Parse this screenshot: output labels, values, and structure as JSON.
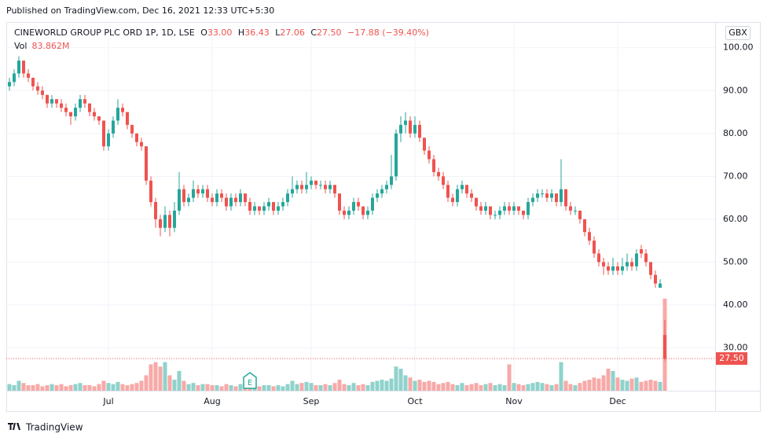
{
  "published": "Published on TradingView.com, Dec 16, 2021 12:33 UTC+5:30",
  "footer": "TradingView",
  "chart_data": {
    "type": "candlestick",
    "header": {
      "symbol": "CINEWORLD GROUP PLC ORD 1P, 1D, LSE",
      "open_key": "O",
      "high_key": "H",
      "low_key": "L",
      "close_key": "C",
      "change": "−17.88 (−39.40%)",
      "volume_key": "Vol"
    },
    "ohlc_labels": {
      "open": "33.00",
      "high": "36.43",
      "low": "27.06",
      "close": "27.50"
    },
    "volume_label": "83.862M",
    "currency": "GBX",
    "event_marker": "E",
    "up_color": "#26a69a",
    "down_color": "#ef5350",
    "up_volume_color": "#8fd2cb",
    "down_volume_color": "#f7a9a7",
    "grid": true,
    "ylim": [
      20,
      106
    ],
    "yticks": [
      {
        "value": 30,
        "label": "30.00"
      },
      {
        "value": 40,
        "label": "40.00"
      },
      {
        "value": 50,
        "label": "50.00"
      },
      {
        "value": 60,
        "label": "60.00"
      },
      {
        "value": 70,
        "label": "70.00"
      },
      {
        "value": 80,
        "label": "80.00"
      },
      {
        "value": 90,
        "label": "90.00"
      },
      {
        "value": 100,
        "label": "100.00"
      }
    ],
    "volume_ylim": [
      0,
      336
    ],
    "categories": [
      null,
      null,
      null,
      null,
      null,
      null,
      null,
      null,
      null,
      null,
      null,
      null,
      null,
      null,
      null,
      null,
      null,
      null,
      null,
      null,
      null,
      "Jul",
      null,
      null,
      null,
      null,
      null,
      null,
      null,
      null,
      null,
      null,
      null,
      null,
      null,
      null,
      null,
      null,
      null,
      null,
      null,
      null,
      null,
      "Aug",
      null,
      null,
      null,
      null,
      null,
      null,
      null,
      null,
      null,
      null,
      null,
      null,
      null,
      null,
      null,
      null,
      null,
      null,
      null,
      null,
      "Sep",
      null,
      null,
      null,
      null,
      null,
      null,
      null,
      null,
      null,
      null,
      null,
      null,
      null,
      null,
      null,
      null,
      null,
      null,
      null,
      null,
      null,
      "Oct",
      null,
      null,
      null,
      null,
      null,
      null,
      null,
      null,
      null,
      null,
      null,
      null,
      null,
      null,
      null,
      null,
      null,
      null,
      null,
      null,
      "Nov",
      null,
      null,
      null,
      null,
      null,
      null,
      null,
      null,
      null,
      null,
      null,
      null,
      null,
      null,
      null,
      null,
      null,
      null,
      null,
      null,
      null,
      "Dec",
      null,
      null,
      null,
      null,
      null,
      null,
      null,
      null,
      null,
      null
    ],
    "candles": [
      [
        91,
        93,
        90,
        92
      ],
      [
        92,
        95,
        91,
        94
      ],
      [
        94,
        98,
        93,
        97
      ],
      [
        97,
        97,
        93,
        94
      ],
      [
        94,
        95,
        92,
        93
      ],
      [
        93,
        93,
        90,
        91
      ],
      [
        91,
        92,
        89,
        90
      ],
      [
        90,
        91,
        88,
        89
      ],
      [
        89,
        89,
        86,
        87
      ],
      [
        87,
        89,
        86,
        88
      ],
      [
        88,
        88,
        86,
        87
      ],
      [
        87,
        88,
        85,
        86
      ],
      [
        86,
        87,
        84,
        85
      ],
      [
        85,
        85,
        82,
        84
      ],
      [
        84,
        87,
        83,
        86
      ],
      [
        86,
        89,
        85,
        88
      ],
      [
        88,
        89,
        86,
        87
      ],
      [
        87,
        87,
        84,
        85
      ],
      [
        85,
        86,
        83,
        84
      ],
      [
        84,
        84,
        82,
        83
      ],
      [
        83,
        83,
        76,
        77
      ],
      [
        77,
        81,
        76,
        80
      ],
      [
        80,
        84,
        79,
        83
      ],
      [
        83,
        88,
        82,
        86
      ],
      [
        86,
        87,
        84,
        85
      ],
      [
        85,
        85,
        81,
        82
      ],
      [
        82,
        82,
        79,
        80
      ],
      [
        80,
        80,
        77,
        78
      ],
      [
        78,
        79,
        76,
        77
      ],
      [
        77,
        77,
        68,
        69
      ],
      [
        69,
        70,
        63,
        64
      ],
      [
        64,
        65,
        58,
        60
      ],
      [
        60,
        61,
        56,
        58
      ],
      [
        58,
        63,
        57,
        61
      ],
      [
        61,
        62,
        56,
        58
      ],
      [
        58,
        64,
        57,
        62
      ],
      [
        62,
        71,
        61,
        67
      ],
      [
        67,
        68,
        63,
        64
      ],
      [
        64,
        66,
        63,
        65
      ],
      [
        65,
        69,
        64,
        67
      ],
      [
        67,
        68,
        65,
        66
      ],
      [
        66,
        68,
        65,
        67
      ],
      [
        67,
        68,
        64,
        65
      ],
      [
        65,
        66,
        63,
        64
      ],
      [
        64,
        67,
        63,
        66
      ],
      [
        66,
        67,
        64,
        65
      ],
      [
        65,
        66,
        62,
        63
      ],
      [
        63,
        66,
        62,
        65
      ],
      [
        65,
        66,
        63,
        64
      ],
      [
        64,
        67,
        63,
        66
      ],
      [
        66,
        66,
        63,
        64
      ],
      [
        64,
        65,
        61,
        62
      ],
      [
        62,
        64,
        61,
        63
      ],
      [
        63,
        63,
        61,
        62
      ],
      [
        62,
        64,
        61,
        63
      ],
      [
        63,
        65,
        62,
        64
      ],
      [
        64,
        64,
        61,
        62
      ],
      [
        62,
        64,
        61,
        63
      ],
      [
        63,
        65,
        62,
        64
      ],
      [
        64,
        67,
        63,
        66
      ],
      [
        66,
        70,
        65,
        67
      ],
      [
        67,
        69,
        66,
        68
      ],
      [
        68,
        69,
        66,
        67
      ],
      [
        67,
        71,
        66,
        68
      ],
      [
        68,
        70,
        67,
        69
      ],
      [
        69,
        69,
        67,
        68
      ],
      [
        68,
        69,
        67,
        68
      ],
      [
        68,
        69,
        66,
        67
      ],
      [
        67,
        69,
        66,
        68
      ],
      [
        68,
        68,
        65,
        66
      ],
      [
        66,
        66,
        61,
        62
      ],
      [
        62,
        63,
        60,
        61
      ],
      [
        61,
        63,
        60,
        62
      ],
      [
        62,
        65,
        61,
        64
      ],
      [
        64,
        65,
        62,
        63
      ],
      [
        63,
        63,
        60,
        61
      ],
      [
        61,
        63,
        60,
        62
      ],
      [
        62,
        66,
        61,
        65
      ],
      [
        65,
        67,
        64,
        66
      ],
      [
        66,
        68,
        65,
        67
      ],
      [
        67,
        69,
        66,
        68
      ],
      [
        68,
        75,
        67,
        70
      ],
      [
        70,
        81,
        69,
        80
      ],
      [
        80,
        84,
        78,
        82
      ],
      [
        82,
        85,
        80,
        83
      ],
      [
        83,
        84,
        79,
        80
      ],
      [
        80,
        84,
        79,
        82
      ],
      [
        82,
        83,
        78,
        79
      ],
      [
        79,
        79,
        75,
        76
      ],
      [
        76,
        77,
        73,
        74
      ],
      [
        74,
        75,
        70,
        71
      ],
      [
        71,
        72,
        69,
        70
      ],
      [
        70,
        71,
        67,
        68
      ],
      [
        68,
        69,
        64,
        65
      ],
      [
        65,
        66,
        63,
        64
      ],
      [
        64,
        68,
        63,
        67
      ],
      [
        67,
        69,
        66,
        68
      ],
      [
        68,
        68,
        65,
        66
      ],
      [
        66,
        67,
        64,
        65
      ],
      [
        65,
        65,
        62,
        63
      ],
      [
        63,
        64,
        61,
        62
      ],
      [
        62,
        64,
        61,
        63
      ],
      [
        63,
        63,
        60,
        61
      ],
      [
        61,
        62,
        60,
        61
      ],
      [
        61,
        63,
        60,
        62
      ],
      [
        62,
        64,
        61,
        63
      ],
      [
        63,
        64,
        61,
        62
      ],
      [
        62,
        64,
        61,
        63
      ],
      [
        63,
        63,
        61,
        62
      ],
      [
        62,
        62,
        60,
        61
      ],
      [
        61,
        65,
        60,
        64
      ],
      [
        64,
        66,
        63,
        65
      ],
      [
        65,
        67,
        64,
        66
      ],
      [
        66,
        67,
        65,
        66
      ],
      [
        66,
        67,
        64,
        65
      ],
      [
        65,
        67,
        64,
        66
      ],
      [
        66,
        66,
        63,
        64
      ],
      [
        64,
        74,
        63,
        67
      ],
      [
        67,
        67,
        62,
        63
      ],
      [
        63,
        64,
        61,
        62
      ],
      [
        62,
        63,
        61,
        62
      ],
      [
        62,
        62,
        59,
        60
      ],
      [
        60,
        60,
        56,
        57
      ],
      [
        57,
        58,
        54,
        55
      ],
      [
        55,
        56,
        51,
        52
      ],
      [
        52,
        53,
        49,
        50
      ],
      [
        50,
        51,
        47,
        49
      ],
      [
        49,
        50,
        47,
        48
      ],
      [
        48,
        51,
        47,
        49
      ],
      [
        49,
        50,
        47,
        48
      ],
      [
        48,
        51,
        47,
        49
      ],
      [
        49,
        52,
        48,
        50
      ],
      [
        50,
        51,
        48,
        49
      ],
      [
        49,
        53,
        48,
        52
      ],
      [
        53,
        54,
        51,
        52
      ],
      [
        52,
        53,
        49,
        50
      ],
      [
        50,
        50,
        46,
        47
      ],
      [
        47,
        48,
        44,
        45
      ],
      [
        44,
        46,
        44,
        45
      ],
      [
        33,
        36.43,
        27.06,
        27.5
      ]
    ],
    "volume": [
      6,
      5,
      9,
      7,
      5,
      5,
      6,
      4,
      5,
      6,
      5,
      6,
      4,
      5,
      6,
      7,
      5,
      5,
      4,
      6,
      9,
      7,
      6,
      8,
      6,
      5,
      6,
      7,
      9,
      14,
      24,
      26,
      22,
      26,
      14,
      10,
      18,
      9,
      6,
      7,
      5,
      6,
      6,
      5,
      5,
      4,
      6,
      5,
      4,
      6,
      5,
      5,
      6,
      4,
      5,
      5,
      4,
      5,
      4,
      6,
      9,
      6,
      7,
      8,
      7,
      5,
      5,
      6,
      5,
      7,
      10,
      6,
      5,
      7,
      5,
      6,
      5,
      8,
      9,
      10,
      9,
      11,
      22,
      20,
      14,
      12,
      9,
      10,
      8,
      9,
      8,
      6,
      7,
      8,
      6,
      5,
      7,
      5,
      6,
      7,
      5,
      6,
      7,
      5,
      6,
      5,
      24,
      7,
      6,
      5,
      6,
      7,
      8,
      7,
      6,
      5,
      6,
      26,
      9,
      6,
      5,
      7,
      9,
      10,
      12,
      11,
      14,
      20,
      18,
      12,
      10,
      9,
      11,
      12,
      8,
      9,
      10,
      9,
      8,
      83.862
    ]
  }
}
